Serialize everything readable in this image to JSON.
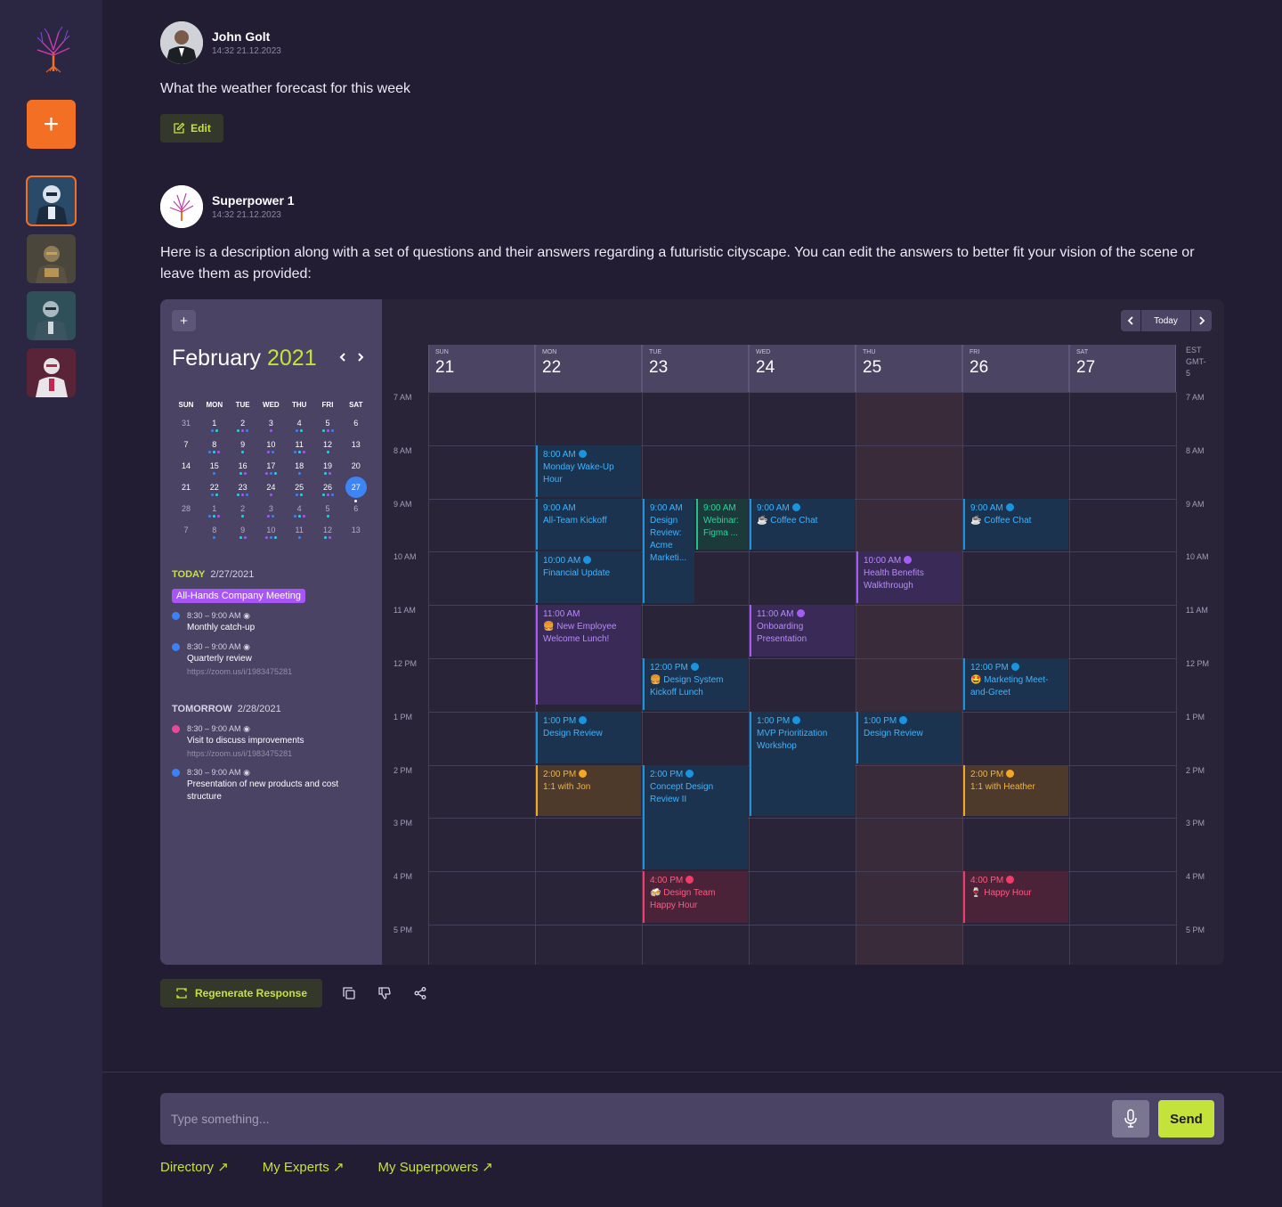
{
  "sidebar": {
    "new_label": "+",
    "experts": [
      "expert-1",
      "expert-2",
      "expert-3",
      "expert-4"
    ]
  },
  "messages": {
    "user": {
      "name": "John Golt",
      "time": "14:32 21.12.2023",
      "text": "What the weather forecast for this week",
      "edit_label": "Edit"
    },
    "bot": {
      "name": "Superpower 1",
      "time": "14:32 21.12.2023",
      "text": "Here is a description along with a set of questions and their answers regarding a futuristic cityscape. You can edit the answers to better fit your vision of the scene or leave them as provided:"
    }
  },
  "calendar": {
    "plus": "+",
    "month": "February",
    "year": "2021",
    "prev": "‹",
    "next": "›",
    "weekdays": [
      "SUN",
      "MON",
      "TUE",
      "WED",
      "THU",
      "FRI",
      "SAT"
    ],
    "weeks": [
      [
        "31",
        "1",
        "2",
        "3",
        "4",
        "5",
        "6"
      ],
      [
        "7",
        "8",
        "9",
        "10",
        "11",
        "12",
        "13"
      ],
      [
        "14",
        "15",
        "16",
        "17",
        "18",
        "19",
        "20"
      ],
      [
        "21",
        "22",
        "23",
        "24",
        "25",
        "26",
        "27"
      ],
      [
        "28",
        "1",
        "2",
        "3",
        "4",
        "5",
        "6"
      ],
      [
        "7",
        "8",
        "9",
        "10",
        "11",
        "12",
        "13"
      ]
    ],
    "today_label": "TODAY",
    "today_date": "2/27/2021",
    "today_pill": "All-Hands Company Meeting",
    "today_items": [
      {
        "time": "8:30 – 9:00 AM",
        "desc": "Monthly catch-up",
        "url": ""
      },
      {
        "time": "8:30 – 9:00 AM",
        "desc": "Quarterly review",
        "url": "https://zoom.us/i/1983475281"
      }
    ],
    "tomorrow_label": "TOMORROW",
    "tomorrow_date": "2/28/2021",
    "tomorrow_items": [
      {
        "time": "8:30 – 9:00 AM",
        "desc": "Visit to discuss improvements",
        "url": "https://zoom.us/i/1983475281",
        "color": "#ec4899"
      },
      {
        "time": "8:30 – 9:00 AM",
        "desc": "Presentation of new products and cost",
        "desc2": "structure",
        "url": "",
        "color": "#3b82f6"
      }
    ],
    "today_button": "Today",
    "tz": [
      "EST",
      "GMT-",
      "5"
    ],
    "days": [
      {
        "name": "SUN",
        "num": "21"
      },
      {
        "name": "MON",
        "num": "22"
      },
      {
        "name": "TUE",
        "num": "23"
      },
      {
        "name": "WED",
        "num": "24"
      },
      {
        "name": "THU",
        "num": "25"
      },
      {
        "name": "FRI",
        "num": "26"
      },
      {
        "name": "SAT",
        "num": "27"
      }
    ],
    "hours": [
      "7 AM",
      "8 AM",
      "9 AM",
      "10 AM",
      "11 AM",
      "12 PM",
      "1 PM",
      "2 PM",
      "3 PM",
      "4 PM",
      "5 PM"
    ],
    "events": [
      {
        "day": 1,
        "start": 8,
        "end": 9,
        "col": "blue",
        "time": "8:00 AM",
        "title": "Monday Wake-Up Hour",
        "icon": "#1a94e0"
      },
      {
        "day": 1,
        "start": 9,
        "end": 10,
        "col": "blue",
        "time": "9:00 AM",
        "title": "All-Team Kickoff",
        "icon": ""
      },
      {
        "day": 1,
        "start": 10,
        "end": 11,
        "col": "blue",
        "time": "10:00 AM",
        "title": "Financial Update",
        "icon": "#1a94e0"
      },
      {
        "day": 1,
        "start": 11,
        "end": 12.9,
        "col": "purple",
        "time": "11:00 AM",
        "title": "🍔 New Employee Welcome Lunch!",
        "icon": ""
      },
      {
        "day": 1,
        "start": 13,
        "end": 14,
        "col": "blue",
        "time": "1:00 PM",
        "title": "Design Review",
        "icon": "#1a94e0"
      },
      {
        "day": 1,
        "start": 14,
        "end": 15,
        "col": "orange",
        "time": "2:00 PM",
        "title": "1:1 with Jon",
        "icon": "#f5a623"
      },
      {
        "day": 2,
        "start": 9,
        "end": 11,
        "col": "blue",
        "time": "9:00 AM",
        "title": "Design Review: Acme Marketi...",
        "icon": "",
        "half": "left"
      },
      {
        "day": 2,
        "start": 9,
        "end": 10,
        "col": "teal",
        "time": "9:00 AM",
        "title": "Webinar: Figma ...",
        "icon": "",
        "half": "right"
      },
      {
        "day": 2,
        "start": 12,
        "end": 13,
        "col": "blue",
        "time": "12:00 PM",
        "title": "🍔 Design System Kickoff Lunch",
        "icon": "#1a94e0"
      },
      {
        "day": 2,
        "start": 14,
        "end": 16,
        "col": "blue",
        "time": "2:00 PM",
        "title": "Concept Design Review II",
        "icon": "#1a94e0"
      },
      {
        "day": 2,
        "start": 16,
        "end": 17,
        "col": "red",
        "time": "4:00 PM",
        "title": "🍻 Design Team Happy Hour",
        "icon": "#f23b6b"
      },
      {
        "day": 3,
        "start": 9,
        "end": 10,
        "col": "blue",
        "time": "9:00 AM",
        "title": "☕ Coffee Chat",
        "icon": "#1a94e0"
      },
      {
        "day": 3,
        "start": 11,
        "end": 12,
        "col": "purple",
        "time": "11:00 AM",
        "title": "Onboarding Presentation",
        "icon": "#a55cf5"
      },
      {
        "day": 3,
        "start": 13,
        "end": 15,
        "col": "blue",
        "time": "1:00 PM",
        "title": "MVP Prioritization Workshop",
        "icon": "#1a94e0"
      },
      {
        "day": 4,
        "start": 10,
        "end": 11,
        "col": "purple",
        "time": "10:00 AM",
        "title": "Health Benefits Walkthrough",
        "icon": "#a55cf5"
      },
      {
        "day": 4,
        "start": 13,
        "end": 14,
        "col": "blue",
        "time": "1:00 PM",
        "title": "Design Review",
        "icon": "#1a94e0"
      },
      {
        "day": 5,
        "start": 9,
        "end": 10,
        "col": "blue",
        "time": "9:00 AM",
        "title": "☕ Coffee Chat",
        "icon": "#1a94e0"
      },
      {
        "day": 5,
        "start": 12,
        "end": 13,
        "col": "blue",
        "time": "12:00 PM",
        "title": "🤩 Marketing Meet-and-Greet",
        "icon": "#1a94e0"
      },
      {
        "day": 5,
        "start": 14,
        "end": 15,
        "col": "orange",
        "time": "2:00 PM",
        "title": "1:1 with Heather",
        "icon": "#f5a623"
      },
      {
        "day": 5,
        "start": 16,
        "end": 17,
        "col": "red",
        "time": "4:00 PM",
        "title": "🍷 Happy Hour",
        "icon": "#f23b6b"
      }
    ]
  },
  "actions": {
    "regenerate": "Regenerate Response"
  },
  "composer": {
    "placeholder": "Type something...",
    "send": "Send"
  },
  "links": [
    "Directory",
    "My Experts",
    "My Superpowers"
  ],
  "colors": {
    "accent": "#c4e33a",
    "orange": "#f36f23",
    "bg": "#221d33"
  }
}
